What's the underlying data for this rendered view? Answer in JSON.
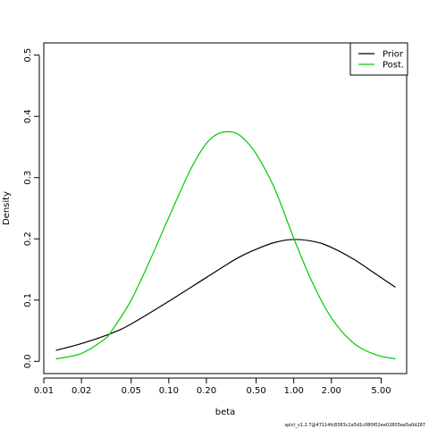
{
  "chart_data": {
    "type": "line",
    "title": "",
    "xlabel": "beta",
    "ylabel": "Density",
    "x_scale": "log",
    "xlim": [
      0.01,
      8.0
    ],
    "ylim": [
      -0.02,
      0.52
    ],
    "x_ticks": [
      0.01,
      0.02,
      0.05,
      0.1,
      0.2,
      0.5,
      1,
      2,
      5
    ],
    "x_tick_labels": [
      "0.01",
      "0.02",
      "0.05",
      "0.10",
      "0.20",
      "0.50",
      "1.00",
      "2.00",
      "5.00"
    ],
    "y_ticks": [
      0,
      0.1,
      0.2,
      0.3,
      0.4,
      0.5
    ],
    "y_tick_labels": [
      "0.0",
      "0.1",
      "0.2",
      "0.3",
      "0.4",
      "0.5"
    ],
    "grid": false,
    "legend": {
      "position": "top-right"
    },
    "series": [
      {
        "name": "Prior",
        "color": "#000000",
        "x": [
          0.0125,
          0.02,
          0.035,
          0.05,
          0.1,
          0.2,
          0.35,
          0.5,
          0.7,
          1.0,
          1.5,
          2.0,
          3.0,
          4.5,
          6.5
        ],
        "y": [
          0.018,
          0.029,
          0.046,
          0.061,
          0.098,
          0.137,
          0.168,
          0.183,
          0.194,
          0.199,
          0.195,
          0.186,
          0.167,
          0.143,
          0.121
        ]
      },
      {
        "name": "Post.",
        "color": "#00cc00",
        "x": [
          0.0125,
          0.02,
          0.03,
          0.035,
          0.05,
          0.07,
          0.1,
          0.15,
          0.2,
          0.25,
          0.3,
          0.35,
          0.4,
          0.5,
          0.7,
          1.0,
          1.4,
          2.0,
          3.0,
          4.5,
          6.5
        ],
        "y": [
          0.004,
          0.013,
          0.035,
          0.05,
          0.1,
          0.163,
          0.235,
          0.314,
          0.356,
          0.372,
          0.375,
          0.372,
          0.363,
          0.339,
          0.283,
          0.201,
          0.13,
          0.071,
          0.03,
          0.011,
          0.004
        ]
      }
    ],
    "footnote": "spict_v1.2.7@47114fc8383c2a5d1c080f02ee02803ea5a0d287"
  }
}
